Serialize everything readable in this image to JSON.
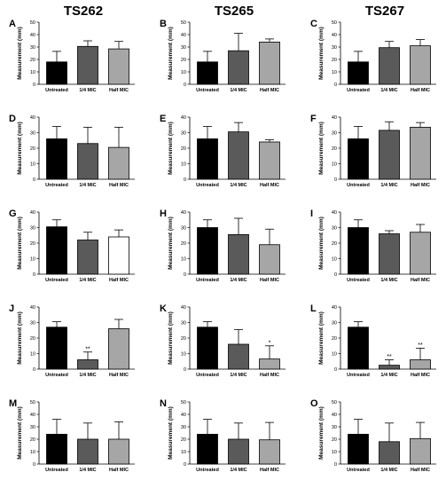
{
  "column_titles": [
    "TS262",
    "TS265",
    "TS267"
  ],
  "chart_data": [
    {
      "type": "bar",
      "panel": "A",
      "column": "TS262",
      "categories": [
        "Untreated",
        "1/4 MIC",
        "Half MIC"
      ],
      "values": [
        18,
        30.5,
        28.5
      ],
      "errors": [
        8.5,
        4.5,
        6
      ],
      "ylabel": "Measurement (mm)",
      "ylim": [
        0,
        50
      ],
      "yticks": [
        0,
        10,
        20,
        30,
        40,
        50
      ],
      "annotations": [
        "",
        "",
        ""
      ],
      "colors": [
        "#000000",
        "#5a5a5a",
        "#a6a6a6"
      ]
    },
    {
      "type": "bar",
      "panel": "B",
      "column": "TS265",
      "categories": [
        "Untreated",
        "1/4 MIC",
        "Half MIC"
      ],
      "values": [
        18,
        27,
        34
      ],
      "errors": [
        8.5,
        14,
        2.5
      ],
      "ylabel": "Measurement (mm)",
      "ylim": [
        0,
        50
      ],
      "yticks": [
        0,
        10,
        20,
        30,
        40,
        50
      ],
      "annotations": [
        "",
        "",
        ""
      ],
      "colors": [
        "#000000",
        "#5a5a5a",
        "#a6a6a6"
      ]
    },
    {
      "type": "bar",
      "panel": "C",
      "column": "TS267",
      "categories": [
        "Untreated",
        "1/4 MIC",
        "Half MIC"
      ],
      "values": [
        18,
        29.5,
        31
      ],
      "errors": [
        8.5,
        5,
        5
      ],
      "ylabel": "Measurement (mm)",
      "ylim": [
        0,
        50
      ],
      "yticks": [
        0,
        10,
        20,
        30,
        40,
        50
      ],
      "annotations": [
        "",
        "",
        ""
      ],
      "colors": [
        "#000000",
        "#5a5a5a",
        "#a6a6a6"
      ]
    },
    {
      "type": "bar",
      "panel": "D",
      "column": "TS262",
      "categories": [
        "Untreated",
        "1/4 MIC",
        "Half MIC"
      ],
      "values": [
        26,
        23,
        20.5
      ],
      "errors": [
        8,
        10.5,
        13
      ],
      "ylabel": "Measurement (mm)",
      "ylim": [
        0,
        40
      ],
      "yticks": [
        0,
        10,
        20,
        30,
        40
      ],
      "annotations": [
        "",
        "",
        ""
      ],
      "colors": [
        "#000000",
        "#5a5a5a",
        "#a6a6a6"
      ]
    },
    {
      "type": "bar",
      "panel": "E",
      "column": "TS265",
      "categories": [
        "Untreated",
        "1/4 MIC",
        "Half MIC"
      ],
      "values": [
        26,
        30.5,
        24
      ],
      "errors": [
        8,
        6,
        1.5
      ],
      "ylabel": "Measurement (mm)",
      "ylim": [
        0,
        40
      ],
      "yticks": [
        0,
        10,
        20,
        30,
        40
      ],
      "annotations": [
        "",
        "",
        ""
      ],
      "colors": [
        "#000000",
        "#5a5a5a",
        "#a6a6a6"
      ]
    },
    {
      "type": "bar",
      "panel": "F",
      "column": "TS267",
      "categories": [
        "Untreated",
        "1/4 MIC",
        "Half MIC"
      ],
      "values": [
        26,
        31.5,
        33.5
      ],
      "errors": [
        8,
        5.5,
        3
      ],
      "ylabel": "Measurement (mm)",
      "ylim": [
        0,
        40
      ],
      "yticks": [
        0,
        10,
        20,
        30,
        40
      ],
      "annotations": [
        "",
        "",
        ""
      ],
      "colors": [
        "#000000",
        "#5a5a5a",
        "#a6a6a6"
      ]
    },
    {
      "type": "bar",
      "panel": "G",
      "column": "TS262",
      "categories": [
        "Untreated",
        "1/4 MIC",
        "Half MIC"
      ],
      "values": [
        30.5,
        22,
        24
      ],
      "errors": [
        4.5,
        5,
        4.5
      ],
      "ylabel": "Measurement (mm)",
      "ylim": [
        0,
        40
      ],
      "yticks": [
        0,
        10,
        20,
        30,
        40
      ],
      "annotations": [
        "",
        "",
        ""
      ],
      "colors": [
        "#000000",
        "#5a5a5a",
        "#ffffff"
      ]
    },
    {
      "type": "bar",
      "panel": "H",
      "column": "TS265",
      "categories": [
        "Untreated",
        "1/4 MIC",
        "Half MIC"
      ],
      "values": [
        30,
        25.5,
        19
      ],
      "errors": [
        5,
        10.5,
        10
      ],
      "ylabel": "Measurement (mm)",
      "ylim": [
        0,
        40
      ],
      "yticks": [
        0,
        10,
        20,
        30,
        40
      ],
      "annotations": [
        "",
        "",
        ""
      ],
      "colors": [
        "#000000",
        "#5a5a5a",
        "#a6a6a6"
      ]
    },
    {
      "type": "bar",
      "panel": "I",
      "column": "TS267",
      "categories": [
        "Untreated",
        "1/4 MIC",
        "Half MIC"
      ],
      "values": [
        30,
        26,
        27
      ],
      "errors": [
        5,
        2,
        5
      ],
      "ylabel": "Measurement (mm)",
      "ylim": [
        0,
        40
      ],
      "yticks": [
        0,
        10,
        20,
        30,
        40
      ],
      "annotations": [
        "",
        "",
        ""
      ],
      "colors": [
        "#000000",
        "#5a5a5a",
        "#a6a6a6"
      ]
    },
    {
      "type": "bar",
      "panel": "J",
      "column": "TS262",
      "categories": [
        "Untreated",
        "1/4 MIC",
        "Half MIC"
      ],
      "values": [
        27,
        6,
        26
      ],
      "errors": [
        3.5,
        5,
        6
      ],
      "ylabel": "Measurement (mm)",
      "ylim": [
        0,
        40
      ],
      "yticks": [
        0,
        10,
        20,
        30,
        40
      ],
      "annotations": [
        "",
        "**",
        ""
      ],
      "colors": [
        "#000000",
        "#5a5a5a",
        "#a6a6a6"
      ]
    },
    {
      "type": "bar",
      "panel": "K",
      "column": "TS265",
      "categories": [
        "Untreated",
        "1/4 MIC",
        "Half MIC"
      ],
      "values": [
        27,
        16,
        6.5
      ],
      "errors": [
        3.5,
        9.5,
        8.5
      ],
      "ylabel": "Measurement (mm)",
      "ylim": [
        0,
        40
      ],
      "yticks": [
        0,
        10,
        20,
        30,
        40
      ],
      "annotations": [
        "",
        "",
        "*"
      ],
      "colors": [
        "#000000",
        "#5a5a5a",
        "#a6a6a6"
      ]
    },
    {
      "type": "bar",
      "panel": "L",
      "column": "TS267",
      "categories": [
        "Untreated",
        "1/4 MIC",
        "Half MIC"
      ],
      "values": [
        27,
        2.5,
        6
      ],
      "errors": [
        3.5,
        3.5,
        7.5
      ],
      "ylabel": "Measurement (mm)",
      "ylim": [
        0,
        40
      ],
      "yticks": [
        0,
        10,
        20,
        30,
        40
      ],
      "annotations": [
        "",
        "**",
        "**"
      ],
      "colors": [
        "#000000",
        "#5a5a5a",
        "#a6a6a6"
      ]
    },
    {
      "type": "bar",
      "panel": "M",
      "column": "TS262",
      "categories": [
        "Untreated",
        "1/4 MIC",
        "Half MIC"
      ],
      "values": [
        24,
        20,
        20
      ],
      "errors": [
        12,
        13,
        14
      ],
      "ylabel": "Measurement (mm)",
      "ylim": [
        0,
        50
      ],
      "yticks": [
        0,
        10,
        20,
        30,
        40,
        50
      ],
      "annotations": [
        "",
        "",
        ""
      ],
      "colors": [
        "#000000",
        "#5a5a5a",
        "#a6a6a6"
      ]
    },
    {
      "type": "bar",
      "panel": "N",
      "column": "TS265",
      "categories": [
        "Untreated",
        "1/4 MIC",
        "Half MIC"
      ],
      "values": [
        24,
        20,
        19.5
      ],
      "errors": [
        12,
        13,
        14
      ],
      "ylabel": "Measurement (mm)",
      "ylim": [
        0,
        50
      ],
      "yticks": [
        0,
        10,
        20,
        30,
        40,
        50
      ],
      "annotations": [
        "",
        "",
        ""
      ],
      "colors": [
        "#000000",
        "#5a5a5a",
        "#a6a6a6"
      ]
    },
    {
      "type": "bar",
      "panel": "O",
      "column": "TS267",
      "categories": [
        "Untreated",
        "1/4 MIC",
        "Half MIC"
      ],
      "values": [
        24,
        18,
        20.5
      ],
      "errors": [
        12,
        15,
        13
      ],
      "ylabel": "Measurement (mm)",
      "ylim": [
        0,
        50
      ],
      "yticks": [
        0,
        10,
        20,
        30,
        40,
        50
      ],
      "annotations": [
        "",
        "",
        ""
      ],
      "colors": [
        "#000000",
        "#5a5a5a",
        "#a6a6a6"
      ]
    }
  ]
}
